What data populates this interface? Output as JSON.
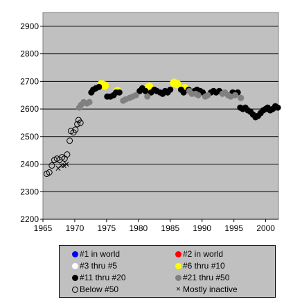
{
  "chart_data": {
    "type": "scatter",
    "title": "",
    "xlabel": "",
    "ylabel": "",
    "xlim": [
      1965,
      2002
    ],
    "ylim": [
      2200,
      2950
    ],
    "x_ticks": [
      "1965",
      "1970",
      "1975",
      "1980",
      "1985",
      "1990",
      "1995",
      "2000"
    ],
    "y_ticks": [
      "2200",
      "2300",
      "2400",
      "2500",
      "2600",
      "2700",
      "2800",
      "2900"
    ],
    "grid": "horizontal",
    "plot_background": "#c0c0c0",
    "series": [
      {
        "name": "#1 in world",
        "color": "#0000ff",
        "marker": "filled-circle",
        "points": []
      },
      {
        "name": "#2 in world",
        "color": "#ff0000",
        "marker": "filled-circle",
        "points": []
      },
      {
        "name": "#3 thru #5",
        "color": "#ffffff",
        "marker": "filled-circle",
        "points": []
      },
      {
        "name": "#6 thru #10",
        "color": "#ffff00",
        "marker": "filled-circle",
        "points": [
          [
            1974.2,
            2690
          ],
          [
            1974.7,
            2685
          ],
          [
            1976.7,
            2665
          ],
          [
            1981.7,
            2680
          ],
          [
            1985.6,
            2695
          ],
          [
            1986.1,
            2690
          ],
          [
            1987.3,
            2675
          ]
        ]
      },
      {
        "name": "#11 thru #20",
        "color": "#000000",
        "marker": "filled-circle",
        "points": [
          [
            1972.6,
            2660
          ],
          [
            1972.9,
            2670
          ],
          [
            1973.3,
            2675
          ],
          [
            1973.8,
            2680
          ],
          [
            1975.1,
            2645
          ],
          [
            1975.6,
            2645
          ],
          [
            1976.1,
            2650
          ],
          [
            1976.5,
            2660
          ],
          [
            1977.0,
            2660
          ],
          [
            1980.2,
            2665
          ],
          [
            1980.6,
            2675
          ],
          [
            1981.1,
            2665
          ],
          [
            1982.0,
            2660
          ],
          [
            1982.5,
            2670
          ],
          [
            1982.9,
            2665
          ],
          [
            1983.4,
            2660
          ],
          [
            1983.8,
            2655
          ],
          [
            1984.2,
            2665
          ],
          [
            1984.6,
            2660
          ],
          [
            1985.0,
            2670
          ],
          [
            1986.7,
            2670
          ],
          [
            1987.1,
            2660
          ],
          [
            1987.9,
            2670
          ],
          [
            1988.3,
            2660
          ],
          [
            1988.8,
            2665
          ],
          [
            1989.2,
            2670
          ],
          [
            1989.7,
            2665
          ],
          [
            1990.1,
            2660
          ],
          [
            1991.4,
            2660
          ],
          [
            1991.8,
            2665
          ],
          [
            1992.2,
            2660
          ],
          [
            1992.7,
            2665
          ],
          [
            1994.8,
            2660
          ],
          [
            1995.6,
            2660
          ],
          [
            1996.0,
            2605
          ],
          [
            1996.4,
            2600
          ],
          [
            1996.8,
            2605
          ],
          [
            1997.2,
            2595
          ],
          [
            1997.6,
            2590
          ],
          [
            1998.0,
            2580
          ],
          [
            1998.4,
            2570
          ],
          [
            1998.8,
            2575
          ],
          [
            1999.2,
            2585
          ],
          [
            1999.6,
            2595
          ],
          [
            2000.0,
            2600
          ],
          [
            2000.3,
            2605
          ],
          [
            2000.7,
            2595
          ],
          [
            2001.1,
            2600
          ],
          [
            2001.5,
            2610
          ],
          [
            2001.9,
            2605
          ]
        ]
      },
      {
        "name": "#21 thru #50",
        "color": "#808080",
        "marker": "filled-circle",
        "points": [
          [
            1970.7,
            2605
          ],
          [
            1971.0,
            2615
          ],
          [
            1971.4,
            2625
          ],
          [
            1971.9,
            2620
          ],
          [
            1972.3,
            2625
          ],
          [
            1977.6,
            2630
          ],
          [
            1978.0,
            2635
          ],
          [
            1978.6,
            2640
          ],
          [
            1979.1,
            2645
          ],
          [
            1979.6,
            2650
          ],
          [
            1981.4,
            2645
          ],
          [
            1988.0,
            2665
          ],
          [
            1988.4,
            2655
          ],
          [
            1989.0,
            2655
          ],
          [
            1989.4,
            2650
          ],
          [
            1990.5,
            2645
          ],
          [
            1990.9,
            2650
          ],
          [
            1993.2,
            2655
          ],
          [
            1993.6,
            2660
          ],
          [
            1994.1,
            2650
          ],
          [
            1994.5,
            2645
          ],
          [
            1995.2,
            2650
          ],
          [
            1996.1,
            2640
          ]
        ]
      },
      {
        "name": "Below #50",
        "color": "#000000",
        "marker": "open-circle",
        "points": [
          [
            1965.6,
            2365
          ],
          [
            1966.0,
            2370
          ],
          [
            1966.4,
            2395
          ],
          [
            1966.8,
            2415
          ],
          [
            1967.2,
            2420
          ],
          [
            1967.6,
            2415
          ],
          [
            1968.0,
            2425
          ],
          [
            1968.4,
            2420
          ],
          [
            1968.8,
            2435
          ],
          [
            1969.2,
            2485
          ],
          [
            1969.4,
            2520
          ],
          [
            1969.8,
            2515
          ],
          [
            1970.1,
            2525
          ],
          [
            1970.4,
            2545
          ],
          [
            1970.6,
            2560
          ],
          [
            1970.9,
            2550
          ]
        ]
      },
      {
        "name": "Mostly inactive",
        "color": "#000000",
        "marker": "cross",
        "points": [
          [
            1967.4,
            2385
          ],
          [
            1967.9,
            2395
          ],
          [
            1968.3,
            2395
          ],
          [
            1968.7,
            2400
          ]
        ]
      }
    ]
  },
  "legend": {
    "items": [
      {
        "label": "#1 in world",
        "marker": "filled-circle",
        "color": "#0000ff"
      },
      {
        "label": "#2 in world",
        "marker": "filled-circle",
        "color": "#ff0000"
      },
      {
        "label": "#3 thru #5",
        "marker": "filled-circle",
        "color": "#ffffff"
      },
      {
        "label": "#6 thru #10",
        "marker": "filled-circle",
        "color": "#ffff00"
      },
      {
        "label": "#11 thru #20",
        "marker": "filled-circle",
        "color": "#000000"
      },
      {
        "label": "#21 thru #50",
        "marker": "filled-circle",
        "color": "#808080"
      },
      {
        "label": "Below #50",
        "marker": "open-circle",
        "color": "#000000"
      },
      {
        "label": "Mostly inactive",
        "marker": "cross",
        "color": "#000000"
      }
    ]
  }
}
